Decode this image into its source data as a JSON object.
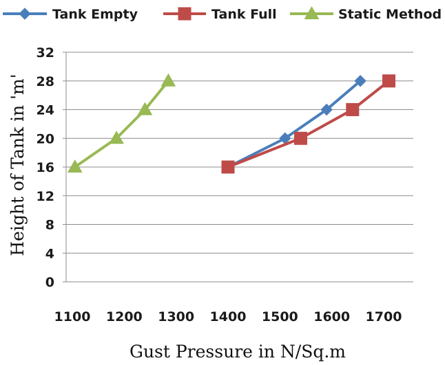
{
  "chart_data": {
    "type": "line",
    "title": "",
    "xlabel": "Gust  Pressure in N/Sq.m",
    "ylabel": "Height of Tank in 'm'",
    "xlim": [
      1100,
      1700
    ],
    "ylim": [
      0,
      32
    ],
    "xticks": [
      "1100",
      "1200",
      "1300",
      "1400",
      "1500",
      "1600",
      "1700"
    ],
    "yticks": [
      "0",
      "4",
      "8",
      "12",
      "16",
      "20",
      "24",
      "28",
      "32"
    ],
    "grid": "horizontal",
    "legend_position": "top",
    "series": [
      {
        "name": "Tank Empty",
        "color": "#4a7ebb",
        "marker": "diamond",
        "points": [
          {
            "x": 1400,
            "y": 16
          },
          {
            "x": 1510,
            "y": 20
          },
          {
            "x": 1590,
            "y": 24
          },
          {
            "x": 1655,
            "y": 28
          }
        ]
      },
      {
        "name": "Tank Full",
        "color": "#be4b48",
        "marker": "square",
        "points": [
          {
            "x": 1400,
            "y": 16
          },
          {
            "x": 1540,
            "y": 20
          },
          {
            "x": 1640,
            "y": 24
          },
          {
            "x": 1710,
            "y": 28
          }
        ]
      },
      {
        "name": "Static Method",
        "color": "#98b954",
        "marker": "triangle",
        "points": [
          {
            "x": 1105,
            "y": 16
          },
          {
            "x": 1185,
            "y": 20
          },
          {
            "x": 1240,
            "y": 24
          },
          {
            "x": 1285,
            "y": 28
          }
        ]
      }
    ]
  }
}
